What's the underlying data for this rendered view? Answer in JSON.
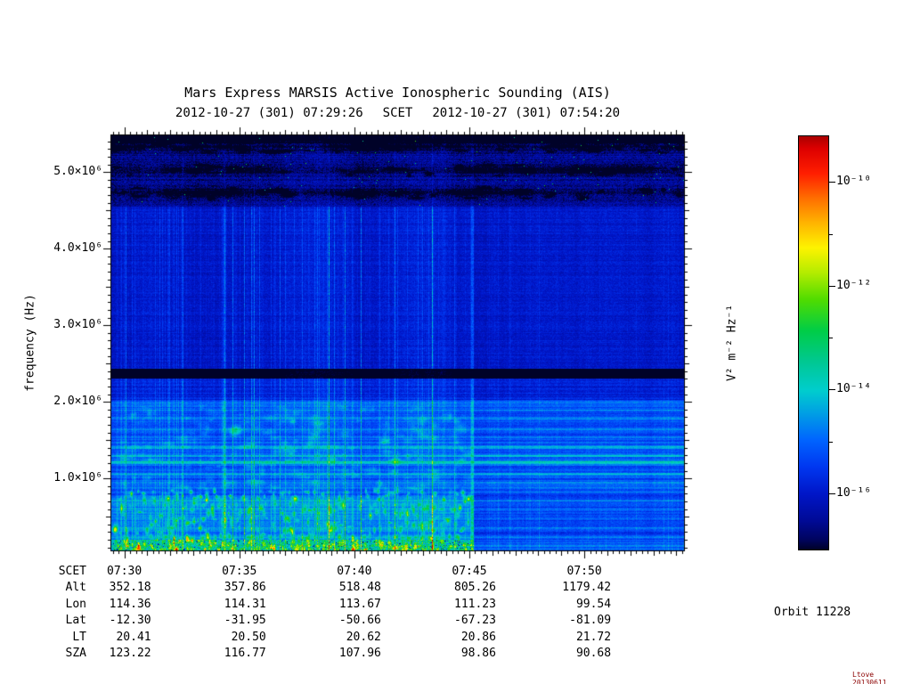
{
  "title": "Mars Express MARSIS Active Ionospheric Sounding (AIS)",
  "subtitle": {
    "start": "2012-10-27 (301) 07:29:26",
    "center": "SCET",
    "end": "2012-10-27 (301) 07:54:20"
  },
  "chart_data": {
    "type": "heatmap",
    "title": "Mars Express MARSIS Active Ionospheric Sounding (AIS)",
    "xlabel": "SCET",
    "ylabel": "frequency (Hz)",
    "date": "2012-10-27 (301)",
    "time_range": [
      "07:29:26",
      "07:54:20"
    ],
    "freq_range_hz": [
      60000,
      5480000
    ],
    "y_ticks": [
      {
        "value": 1000000,
        "label": "1.0×10⁶"
      },
      {
        "value": 2000000,
        "label": "2.0×10⁶"
      },
      {
        "value": 3000000,
        "label": "3.0×10⁶"
      },
      {
        "value": 4000000,
        "label": "4.0×10⁶"
      },
      {
        "value": 5000000,
        "label": "5.0×10⁶"
      }
    ],
    "x_ticks": [
      "07:30",
      "07:35",
      "07:40",
      "07:45",
      "07:50"
    ],
    "features": {
      "background_level_exp": -15.95,
      "transmitter_gap_hz": [
        2300000,
        2430000
      ],
      "dark_band_top_hz": [
        4550000,
        5480000
      ],
      "dark_rows_hz": [
        4730000,
        5030000,
        5330000
      ],
      "bright_h_lines": [
        {
          "f_hz": 1220000,
          "amp": 1.35
        },
        {
          "f_hz": 1300000,
          "amp": 0.6
        },
        {
          "f_hz": 1050000,
          "amp": 0.5
        },
        {
          "f_hz": 1400000,
          "amp": 0.45
        },
        {
          "f_hz": 900000,
          "amp": 0.4
        },
        {
          "f_hz": 1620000,
          "amp": 0.3
        },
        {
          "f_hz": 1800000,
          "amp": 0.25
        }
      ],
      "harmonic_spacing_hz": 118000,
      "ionosphere_top_hz": 780000,
      "active_until": "07:45:12"
    }
  },
  "colorbar": {
    "label": "V² m⁻² Hz⁻¹",
    "range_exp": [
      -9.1,
      -17.1
    ],
    "ticks": [
      {
        "exp": -10,
        "label": "10⁻¹⁰"
      },
      {
        "exp": -12,
        "label": "10⁻¹²"
      },
      {
        "exp": -14,
        "label": "10⁻¹⁴"
      },
      {
        "exp": -16,
        "label": "10⁻¹⁶"
      }
    ],
    "minor_tick_exps": [
      -11,
      -13,
      -15
    ],
    "gradient": [
      {
        "p": 0.0,
        "c": "#aa0000"
      },
      {
        "p": 0.03,
        "c": "#dd0000"
      },
      {
        "p": 0.09,
        "c": "#ff1e00"
      },
      {
        "p": 0.15,
        "c": "#ff6e00"
      },
      {
        "p": 0.21,
        "c": "#ffb400"
      },
      {
        "p": 0.27,
        "c": "#fdf300"
      },
      {
        "p": 0.33,
        "c": "#b4ec00"
      },
      {
        "p": 0.395,
        "c": "#50dc00"
      },
      {
        "p": 0.47,
        "c": "#00cd46"
      },
      {
        "p": 0.55,
        "c": "#00c896"
      },
      {
        "p": 0.615,
        "c": "#00cdcd"
      },
      {
        "p": 0.675,
        "c": "#009be6"
      },
      {
        "p": 0.735,
        "c": "#0064ff"
      },
      {
        "p": 0.8,
        "c": "#0037f0"
      },
      {
        "p": 0.865,
        "c": "#0016c8"
      },
      {
        "p": 0.93,
        "c": "#000a96"
      },
      {
        "p": 0.975,
        "c": "#000460"
      },
      {
        "p": 1.0,
        "c": "#000228"
      }
    ]
  },
  "ephemeris": {
    "rows": [
      {
        "label": "SCET",
        "align": "center",
        "values": [
          "07:30",
          "07:35",
          "07:40",
          "07:45",
          "07:50"
        ]
      },
      {
        "label": "Alt",
        "values": [
          "352.18",
          "357.86",
          "518.48",
          "805.26",
          "1179.42"
        ]
      },
      {
        "label": "Lon",
        "values": [
          "114.36",
          "114.31",
          "113.67",
          "111.23",
          "99.54"
        ]
      },
      {
        "label": "Lat",
        "values": [
          "-12.30",
          "-31.95",
          "-50.66",
          "-67.23",
          "-81.09"
        ]
      },
      {
        "label": "LT",
        "values": [
          "20.41",
          "20.50",
          "20.62",
          "20.86",
          "21.72"
        ]
      },
      {
        "label": "SZA",
        "values": [
          "123.22",
          "116.77",
          "107.96",
          "98.86",
          "90.68"
        ]
      }
    ]
  },
  "orbit_label": "Orbit 11228",
  "stamp": "Ltove 20130611"
}
